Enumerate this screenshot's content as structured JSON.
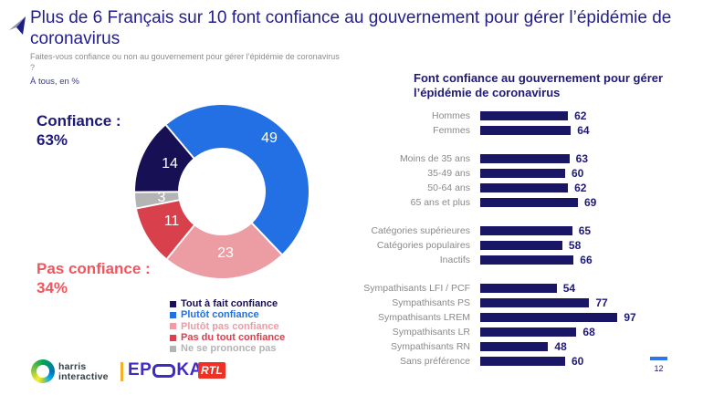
{
  "header": {
    "title": "Plus de 6 Français sur 10 font confiance au gouvernement pour gérer l’épidémie de coronavirus",
    "subtitle": "Faites-vous confiance ou non au gouvernement pour gérer l’épidémie de coronavirus ?",
    "base_note": "À tous, en %"
  },
  "donut_summary": {
    "confidence_label": "Confiance :",
    "confidence_value": "63%",
    "no_confidence_label": "Pas confiance :",
    "no_confidence_value": "34%"
  },
  "chart_data": [
    {
      "type": "pie",
      "donut": true,
      "unit": "%",
      "labels": [
        "Tout à fait confiance",
        "Plutôt confiance",
        "Plutôt pas confiance",
        "Pas du tout confiance",
        "Ne se prononce pas"
      ],
      "values": [
        14,
        49,
        23,
        11,
        3
      ],
      "colors": [
        "#171055",
        "#2270E4",
        "#EC9DA4",
        "#D8414B",
        "#B4B4B4"
      ],
      "clockwise_indexes": [
        1,
        2,
        3,
        4,
        0
      ],
      "start_angle_deg": -40,
      "aggregates": {
        "Confiance": 63,
        "Pas confiance": 34
      },
      "legend_position": "bottom"
    },
    {
      "type": "bar",
      "orientation": "horizontal",
      "title": "Font confiance au gouvernement pour gérer l’épidémie de coronavirus",
      "unit": "%",
      "xlim": [
        0,
        100
      ],
      "bar_color": "#1A1666",
      "groups": [
        {
          "rows": [
            {
              "label": "Hommes",
              "value": 62
            },
            {
              "label": "Femmes",
              "value": 64
            }
          ]
        },
        {
          "rows": [
            {
              "label": "Moins de 35 ans",
              "value": 63
            },
            {
              "label": "35-49 ans",
              "value": 60
            },
            {
              "label": "50-64 ans",
              "value": 62
            },
            {
              "label": "65 ans et plus",
              "value": 69
            }
          ]
        },
        {
          "rows": [
            {
              "label": "Catégories supérieures",
              "value": 65
            },
            {
              "label": "Catégories populaires",
              "value": 58
            },
            {
              "label": "Inactifs",
              "value": 66
            }
          ]
        },
        {
          "rows": [
            {
              "label": "Sympathisants LFI / PCF",
              "value": 54
            },
            {
              "label": "Sympathisants PS",
              "value": 77
            },
            {
              "label": "Sympathisants LREM",
              "value": 97
            },
            {
              "label": "Sympathisants LR",
              "value": 68
            },
            {
              "label": "Sympathisants RN",
              "value": 48
            },
            {
              "label": "Sans préférence",
              "value": 60
            }
          ]
        }
      ]
    }
  ],
  "footer": {
    "harris_line1": "harris",
    "harris_line2": "interactive",
    "epoka_left": "EP",
    "epoka_right": "KA",
    "rtl_text": "RTL",
    "page_number": "12"
  },
  "colors": {
    "title_blue": "#221E8C",
    "navy": "#1E1A78",
    "bar_navy": "#1A1666",
    "salmon": "#F0575D",
    "label_gray": "#8A8A8A",
    "page_dash_blue": "#2E75E8",
    "epoka_purple": "#3D2BC2",
    "rtl_red": "#EE3124",
    "divider_yellow": "#F3B229"
  }
}
